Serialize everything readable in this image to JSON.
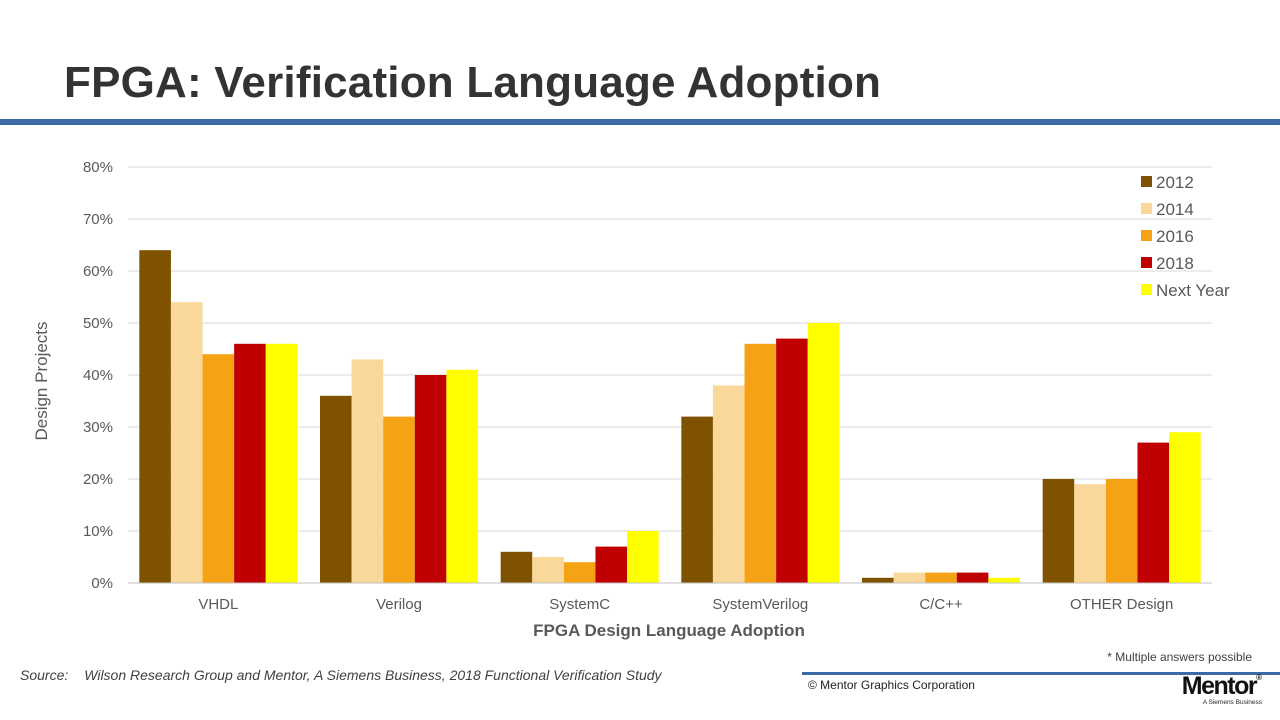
{
  "slide": {
    "title": "FPGA: Verification Language Adoption",
    "footnote": "* Multiple answers possible",
    "source_label": "Source:",
    "source_text": "Wilson Research Group and Mentor, A Siemens Business, 2018 Functional Verification Study",
    "copyright": "© Mentor Graphics Corporation",
    "logo": {
      "word": "Mentor",
      "mark": "®",
      "tagline": "A Siemens Business"
    }
  },
  "colors": {
    "title_rule": "#3b6aa6",
    "gridline": "#d9d9d9"
  },
  "chart_data": {
    "type": "bar",
    "title": "",
    "xlabel": "FPGA Design Language Adoption",
    "ylabel": "Design Projects",
    "categories": [
      "VHDL",
      "Verilog",
      "SystemC",
      "SystemVerilog",
      "C/C++",
      "OTHER Design"
    ],
    "ylim": [
      0,
      80
    ],
    "yticks": [
      0,
      10,
      20,
      30,
      40,
      50,
      60,
      70,
      80
    ],
    "ytick_labels": [
      "0%",
      "10%",
      "20%",
      "30%",
      "40%",
      "50%",
      "60%",
      "70%",
      "80%"
    ],
    "grid": true,
    "legend": "top-right",
    "series": [
      {
        "name": "2012",
        "color": "#7f5200",
        "values": [
          64,
          36,
          6,
          32,
          1,
          20
        ]
      },
      {
        "name": "2014",
        "color": "#fad89a",
        "values": [
          54,
          43,
          5,
          38,
          2,
          19
        ]
      },
      {
        "name": "2016",
        "color": "#f5a315",
        "values": [
          44,
          32,
          4,
          46,
          2,
          20
        ]
      },
      {
        "name": "2018",
        "color": "#c00000",
        "values": [
          46,
          40,
          7,
          47,
          2,
          27
        ]
      },
      {
        "name": "Next Year",
        "color": "#ffff00",
        "values": [
          46,
          41,
          10,
          50,
          1,
          29
        ]
      }
    ]
  }
}
